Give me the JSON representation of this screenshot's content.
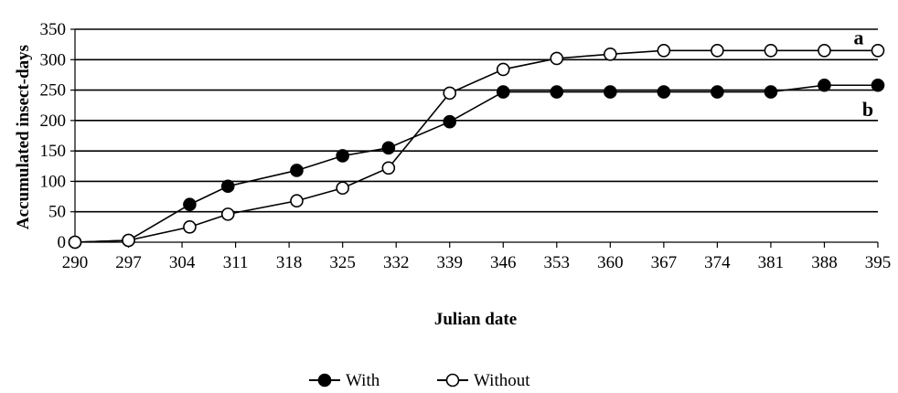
{
  "chart_data": {
    "type": "line",
    "title": "",
    "xlabel": "Julian date",
    "ylabel": "Accumulated insect-days",
    "xlim": [
      290,
      395
    ],
    "ylim": [
      0,
      350
    ],
    "x_ticks": [
      290,
      297,
      304,
      311,
      318,
      325,
      332,
      339,
      346,
      353,
      360,
      367,
      374,
      381,
      388,
      395
    ],
    "y_ticks": [
      0,
      50,
      100,
      150,
      200,
      250,
      300,
      350
    ],
    "grid": "horizontal",
    "legend_position": "bottom",
    "series": [
      {
        "name": "With",
        "marker": "filled-circle",
        "color": "#000000",
        "x": [
          290,
          297,
          305,
          310,
          319,
          325,
          331,
          339,
          346,
          353,
          360,
          367,
          374,
          381,
          388,
          395
        ],
        "y": [
          0,
          3,
          62,
          92,
          118,
          142,
          155,
          198,
          247,
          247,
          247,
          247,
          247,
          247,
          258,
          258
        ],
        "annotation": "b"
      },
      {
        "name": "Without",
        "marker": "open-circle",
        "color": "#000000",
        "x": [
          290,
          297,
          305,
          310,
          319,
          325,
          331,
          339,
          346,
          353,
          360,
          367,
          374,
          381,
          388,
          395
        ],
        "y": [
          0,
          3,
          25,
          46,
          68,
          89,
          122,
          245,
          284,
          302,
          309,
          315,
          315,
          315,
          315,
          315
        ],
        "annotation": "a"
      }
    ]
  }
}
